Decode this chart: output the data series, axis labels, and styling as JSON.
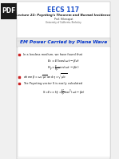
{
  "bg_color": "#f0f0f0",
  "slide_bg": "#ffffff",
  "pdf_badge_bg": "#1a1a1a",
  "pdf_badge_text": "PDF",
  "title": "EECS 117",
  "subtitle": "Lecture 22: Poynting's Theorem and Normal Incidence",
  "author": "Prof. Hikmapat",
  "university": "University of California, Berkeley",
  "section_title": "EM Power Carried by Plane Wave",
  "bullet1": "In a lossless medium, we have found that",
  "eq1": "$E_x = E_0 \\cos(\\omega t - \\beta z)$",
  "eq2": "$H_y = \\frac{E_0}{\\eta_0} \\cos(\\omega t - \\beta z)$",
  "bullet2": "where $\\beta = \\omega\\sqrt{\\mu\\varepsilon}$ and $\\eta = \\sqrt{\\mu/\\varepsilon}$",
  "bullet3": "The Poynting vector S is easily calculated",
  "eq3": "$S = E_x \\times H_y = \\frac{E_0^2}{\\eta_0} \\cos^2(\\omega t - \\beta z)$",
  "title_color": "#2255cc",
  "subtitle_color": "#1a1a1a",
  "section_color": "#0033cc",
  "bullet_color": "#111111",
  "bullet_marker_color": "#cc2222",
  "slide_border_color": "#aaaaaa"
}
